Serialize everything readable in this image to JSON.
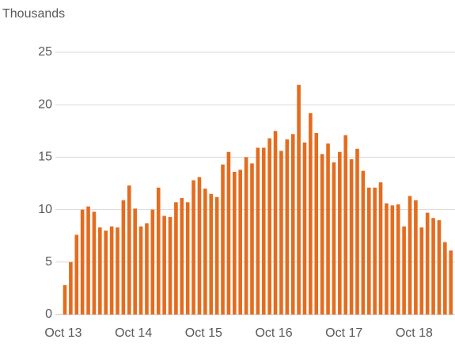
{
  "chart_data": {
    "type": "bar",
    "y_axis_label": "Thousands",
    "categories": [
      "Oct 13",
      null,
      null,
      null,
      null,
      null,
      null,
      null,
      null,
      null,
      null,
      null,
      "Oct 14",
      null,
      null,
      null,
      null,
      null,
      null,
      null,
      null,
      null,
      null,
      null,
      "Oct 15",
      null,
      null,
      null,
      null,
      null,
      null,
      null,
      null,
      null,
      null,
      null,
      "Oct 16",
      null,
      null,
      null,
      null,
      null,
      null,
      null,
      null,
      null,
      null,
      null,
      "Oct 17",
      null,
      null,
      null,
      null,
      null,
      null,
      null,
      null,
      null,
      null,
      null,
      "Oct 18",
      null,
      null,
      null,
      null,
      null,
      null
    ],
    "values": [
      2.8,
      5.0,
      7.6,
      10.0,
      10.3,
      9.8,
      8.3,
      8.0,
      8.4,
      8.3,
      10.9,
      12.3,
      10.1,
      8.4,
      8.7,
      10.0,
      12.1,
      9.4,
      9.3,
      10.7,
      11.1,
      10.7,
      12.8,
      13.1,
      12.0,
      11.5,
      11.2,
      14.3,
      15.5,
      13.6,
      13.8,
      15.0,
      14.4,
      15.9,
      15.9,
      16.8,
      17.5,
      15.6,
      16.7,
      17.2,
      21.9,
      16.4,
      19.2,
      17.3,
      15.3,
      16.3,
      14.5,
      15.5,
      17.1,
      14.8,
      15.8,
      13.7,
      12.1,
      12.1,
      12.6,
      10.6,
      10.4,
      10.5,
      8.4,
      11.3,
      10.9,
      8.3,
      9.7,
      9.2,
      9.0,
      6.9,
      6.1
    ],
    "color": "#e46c1f",
    "ylim": [
      0,
      25
    ],
    "yticks": [
      0,
      5,
      10,
      15,
      20,
      25
    ],
    "grid": true
  }
}
